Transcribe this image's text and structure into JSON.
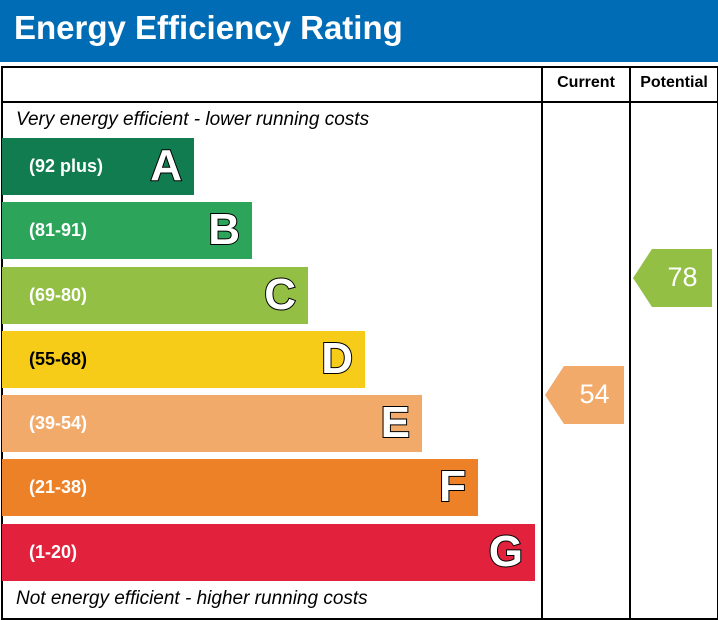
{
  "title": "Energy Efficiency Rating",
  "columns": {
    "current": "Current",
    "potential": "Potential"
  },
  "notes": {
    "top": "Very energy efficient - lower running costs",
    "bottom": "Not energy efficient - higher running costs"
  },
  "chart_data": {
    "type": "bar",
    "bands": [
      {
        "letter": "A",
        "range": "(92 plus)",
        "color": "#127c51"
      },
      {
        "letter": "B",
        "range": "(81-91)",
        "color": "#2ca55b"
      },
      {
        "letter": "C",
        "range": "(69-80)",
        "color": "#92bf44"
      },
      {
        "letter": "D",
        "range": "(55-68)",
        "color": "#f6cc18"
      },
      {
        "letter": "E",
        "range": "(39-54)",
        "color": "#f2aa6b"
      },
      {
        "letter": "F",
        "range": "(21-38)",
        "color": "#ed8128"
      },
      {
        "letter": "G",
        "range": "(1-20)",
        "color": "#e2213c"
      }
    ],
    "current": {
      "value": "54",
      "band": "E",
      "color": "#f2aa6b"
    },
    "potential": {
      "value": "78",
      "band": "C",
      "color": "#92bf44"
    }
  }
}
